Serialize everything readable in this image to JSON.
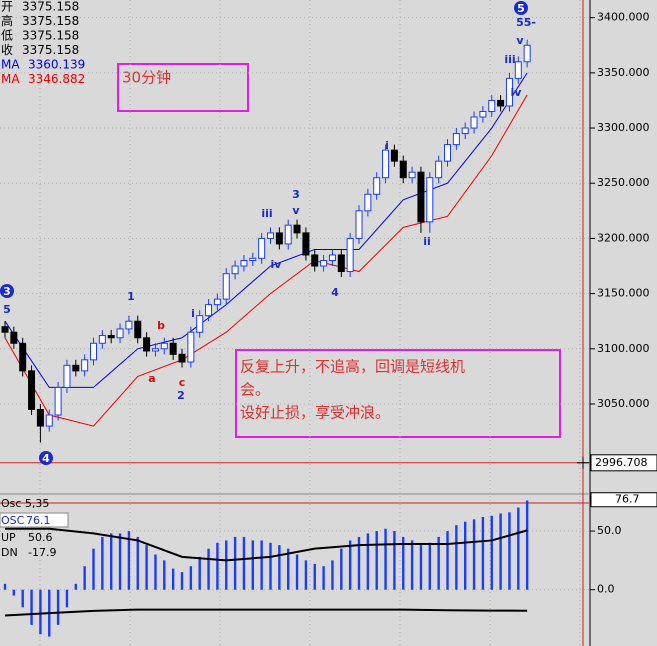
{
  "chart_data": {
    "type": "candlestick",
    "period_label": "30分钟",
    "info": [
      {
        "label": "开",
        "value": 3375.158
      },
      {
        "label": "高",
        "value": 3375.158
      },
      {
        "label": "低",
        "value": 3375.158
      },
      {
        "label": "收",
        "value": 3375.158
      },
      {
        "label": "MA",
        "value": 3360.139
      },
      {
        "label": "MA",
        "value": 3346.882
      }
    ],
    "note": [
      "反复上升，不追高，回调是短线机",
      "会。",
      "设好止损，享受冲浪。"
    ],
    "last_price": 2996.708,
    "ylim": [
      2992,
      3416
    ],
    "yticks": [
      {
        "value": 3400,
        "label": "3400.000"
      },
      {
        "value": 3350,
        "label": "3350.000"
      },
      {
        "value": 3300,
        "label": "3300.000"
      },
      {
        "value": 3250,
        "label": "3250.000"
      },
      {
        "value": 3200,
        "label": "3200.000"
      },
      {
        "value": 3150,
        "label": "3150.000"
      },
      {
        "value": 3100,
        "label": "3100.000"
      },
      {
        "value": 3050,
        "label": "3050.000"
      }
    ],
    "up_color": "#1a3cff",
    "down_color": "#000000",
    "open": [
      3120,
      3115,
      3105,
      3080,
      3045,
      3030,
      3040,
      3065,
      3085,
      3080,
      3090,
      3105,
      3112,
      3110,
      3118,
      3125,
      3110,
      3098,
      3100,
      3105,
      3095,
      3088,
      3115,
      3130,
      3140,
      3145,
      3168,
      3175,
      3180,
      3182,
      3200,
      3205,
      3195,
      3212,
      3205,
      3185,
      3175,
      3180,
      3185,
      3170,
      3200,
      3225,
      3240,
      3255,
      3280,
      3270,
      3255,
      3260,
      3215,
      3255,
      3270,
      3285,
      3295,
      3300,
      3310,
      3315,
      3325,
      3320,
      3345,
      3360
    ],
    "high": [
      3125,
      3120,
      3110,
      3085,
      3050,
      3045,
      3070,
      3090,
      3090,
      3095,
      3110,
      3117,
      3117,
      3123,
      3130,
      3130,
      3115,
      3105,
      3110,
      3110,
      3100,
      3120,
      3135,
      3145,
      3150,
      3173,
      3180,
      3185,
      3187,
      3205,
      3210,
      3210,
      3217,
      3217,
      3210,
      3190,
      3185,
      3190,
      3190,
      3205,
      3230,
      3245,
      3260,
      3285,
      3285,
      3275,
      3265,
      3265,
      3260,
      3275,
      3290,
      3300,
      3305,
      3315,
      3320,
      3330,
      3330,
      3350,
      3365,
      3380
    ],
    "low": [
      3110,
      3100,
      3075,
      3040,
      3015,
      3025,
      3035,
      3060,
      3075,
      3075,
      3085,
      3100,
      3105,
      3105,
      3113,
      3105,
      3093,
      3093,
      3095,
      3090,
      3083,
      3083,
      3110,
      3125,
      3135,
      3140,
      3163,
      3170,
      3175,
      3177,
      3195,
      3190,
      3190,
      3200,
      3180,
      3170,
      3170,
      3175,
      3165,
      3165,
      3195,
      3220,
      3235,
      3250,
      3265,
      3250,
      3250,
      3205,
      3205,
      3250,
      3265,
      3280,
      3290,
      3295,
      3305,
      3310,
      3315,
      3315,
      3340,
      3355
    ],
    "close": [
      3115,
      3105,
      3080,
      3045,
      3030,
      3040,
      3065,
      3085,
      3080,
      3090,
      3105,
      3112,
      3110,
      3118,
      3125,
      3110,
      3098,
      3100,
      3105,
      3095,
      3088,
      3115,
      3130,
      3140,
      3145,
      3168,
      3175,
      3180,
      3182,
      3200,
      3205,
      3195,
      3212,
      3205,
      3185,
      3175,
      3180,
      3185,
      3170,
      3200,
      3225,
      3240,
      3255,
      3280,
      3270,
      3255,
      3260,
      3215,
      3255,
      3270,
      3285,
      3295,
      3300,
      3310,
      3315,
      3325,
      3320,
      3345,
      3360,
      3375
    ],
    "ma_index": [
      0,
      5,
      10,
      15,
      20,
      25,
      30,
      35,
      40,
      45,
      50,
      55,
      59
    ],
    "ma": [
      {
        "name": "MA",
        "color": "#0000ee",
        "values": [
          3125,
          3065,
          3065,
          3100,
          3110,
          3140,
          3175,
          3190,
          3190,
          3235,
          3250,
          3300,
          3350
        ]
      },
      {
        "name": "MA",
        "color": "#ee0000",
        "values": [
          3110,
          3040,
          3030,
          3075,
          3090,
          3115,
          3150,
          3180,
          3170,
          3210,
          3220,
          3275,
          3330
        ]
      }
    ],
    "wave_labels": [
      "3",
      "5",
      "4",
      "1",
      "a",
      "b",
      "c",
      "2",
      "i",
      "iii",
      "iv",
      "3",
      "v",
      "4",
      "i",
      "ii",
      "5",
      "55-",
      "v",
      "iii",
      "iv"
    ],
    "osc": {
      "title": "Osc 5,35",
      "ylim": [
        -48,
        81.6
      ],
      "yticks": [
        {
          "value": 50,
          "label": "50.0"
        },
        {
          "value": 0,
          "label": "0.0"
        }
      ],
      "last": {
        "value": 76.7,
        "label": "76.7"
      },
      "hist_name": "OSC",
      "hist_last": 76.1,
      "hist_color": "#1a3cff",
      "hist": [
        5,
        -5,
        -15,
        -30,
        -38,
        -40,
        -30,
        -15,
        5,
        20,
        35,
        45,
        48,
        48,
        50,
        45,
        38,
        30,
        25,
        18,
        15,
        20,
        28,
        35,
        40,
        42,
        45,
        45,
        42,
        42,
        40,
        38,
        35,
        30,
        25,
        22,
        20,
        25,
        35,
        42,
        45,
        48,
        50,
        52,
        50,
        45,
        42,
        38,
        40,
        45,
        50,
        55,
        58,
        60,
        62,
        63,
        65,
        66,
        70,
        76.1
      ],
      "lines": [
        {
          "name": "UP",
          "last": 50.6,
          "values": [
            52,
            52,
            48,
            42,
            28,
            25,
            28,
            35,
            38,
            39,
            39,
            42,
            50.6
          ]
        },
        {
          "name": "DN",
          "last": -17.9,
          "values": [
            -22,
            -20,
            -18,
            -17,
            -17,
            -17,
            -17,
            -17,
            -17,
            -17,
            -17.5,
            -17.8,
            -17.9
          ]
        }
      ]
    }
  }
}
